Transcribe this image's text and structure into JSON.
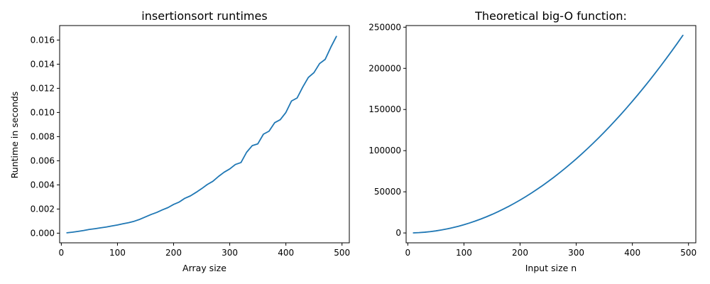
{
  "colors": {
    "series": "#1f77b4"
  },
  "chart_data": [
    {
      "type": "line",
      "title": "insertionsort runtimes",
      "xlabel": "Array size",
      "ylabel": "Runtime in seconds",
      "xlim": [
        -3,
        513
      ],
      "ylim": [
        -0.0008,
        0.0172
      ],
      "xticks": [
        0,
        100,
        200,
        300,
        400,
        500
      ],
      "yticks": [
        0.0,
        0.002,
        0.004,
        0.006,
        0.008,
        0.01,
        0.012,
        0.014,
        0.016
      ],
      "xtick_labels": [
        "0",
        "100",
        "200",
        "300",
        "400",
        "500"
      ],
      "ytick_labels": [
        "0.000",
        "0.002",
        "0.004",
        "0.006",
        "0.008",
        "0.010",
        "0.012",
        "0.014",
        "0.016"
      ],
      "grid": false,
      "series": [
        {
          "x": [
            10,
            20,
            30,
            40,
            50,
            60,
            70,
            80,
            90,
            100,
            110,
            120,
            130,
            140,
            150,
            160,
            170,
            180,
            190,
            200,
            210,
            220,
            230,
            240,
            250,
            260,
            270,
            280,
            290,
            300,
            310,
            320,
            330,
            340,
            350,
            360,
            370,
            380,
            390,
            400,
            410,
            420,
            430,
            440,
            450,
            460,
            470,
            480,
            490
          ],
          "y": [
            3e-05,
            8e-05,
            0.00015,
            0.00022,
            0.00031,
            0.00037,
            0.00044,
            0.00051,
            0.0006,
            0.00068,
            0.00078,
            0.00087,
            0.00099,
            0.00115,
            0.00135,
            0.00155,
            0.00172,
            0.00193,
            0.00212,
            0.00238,
            0.00258,
            0.00289,
            0.00309,
            0.00338,
            0.00369,
            0.00403,
            0.0043,
            0.0047,
            0.00505,
            0.00532,
            0.00569,
            0.00585,
            0.0067,
            0.00725,
            0.0074,
            0.0082,
            0.00845,
            0.00915,
            0.0094,
            0.01,
            0.01095,
            0.0112,
            0.0121,
            0.0129,
            0.0133,
            0.01405,
            0.0144,
            0.0154,
            0.0163
          ]
        }
      ]
    },
    {
      "type": "line",
      "title": "Theoretical big-O function:",
      "xlabel": "Input size n",
      "ylabel": "",
      "xlim": [
        -3,
        513
      ],
      "ylim": [
        -12000,
        252000
      ],
      "xticks": [
        0,
        100,
        200,
        300,
        400,
        500
      ],
      "yticks": [
        0,
        50000,
        100000,
        150000,
        200000,
        250000
      ],
      "xtick_labels": [
        "0",
        "100",
        "200",
        "300",
        "400",
        "500"
      ],
      "ytick_labels": [
        "0",
        "50000",
        "100000",
        "150000",
        "200000",
        "250000"
      ],
      "grid": false,
      "series": [
        {
          "function": "n^2",
          "x": [
            10,
            20,
            30,
            40,
            50,
            60,
            70,
            80,
            90,
            100,
            110,
            120,
            130,
            140,
            150,
            160,
            170,
            180,
            190,
            200,
            210,
            220,
            230,
            240,
            250,
            260,
            270,
            280,
            290,
            300,
            310,
            320,
            330,
            340,
            350,
            360,
            370,
            380,
            390,
            400,
            410,
            420,
            430,
            440,
            450,
            460,
            470,
            480,
            490
          ],
          "y": [
            100,
            400,
            900,
            1600,
            2500,
            3600,
            4900,
            6400,
            8100,
            10000,
            12100,
            14400,
            16900,
            19600,
            22500,
            25600,
            28900,
            32400,
            36100,
            40000,
            44100,
            48400,
            52900,
            57600,
            62500,
            67600,
            72900,
            78400,
            84100,
            90000,
            96100,
            102400,
            108900,
            115600,
            122500,
            129600,
            136900,
            144400,
            152100,
            160000,
            168100,
            176400,
            184900,
            193600,
            202500,
            211600,
            220900,
            230400,
            240100
          ]
        }
      ]
    }
  ]
}
